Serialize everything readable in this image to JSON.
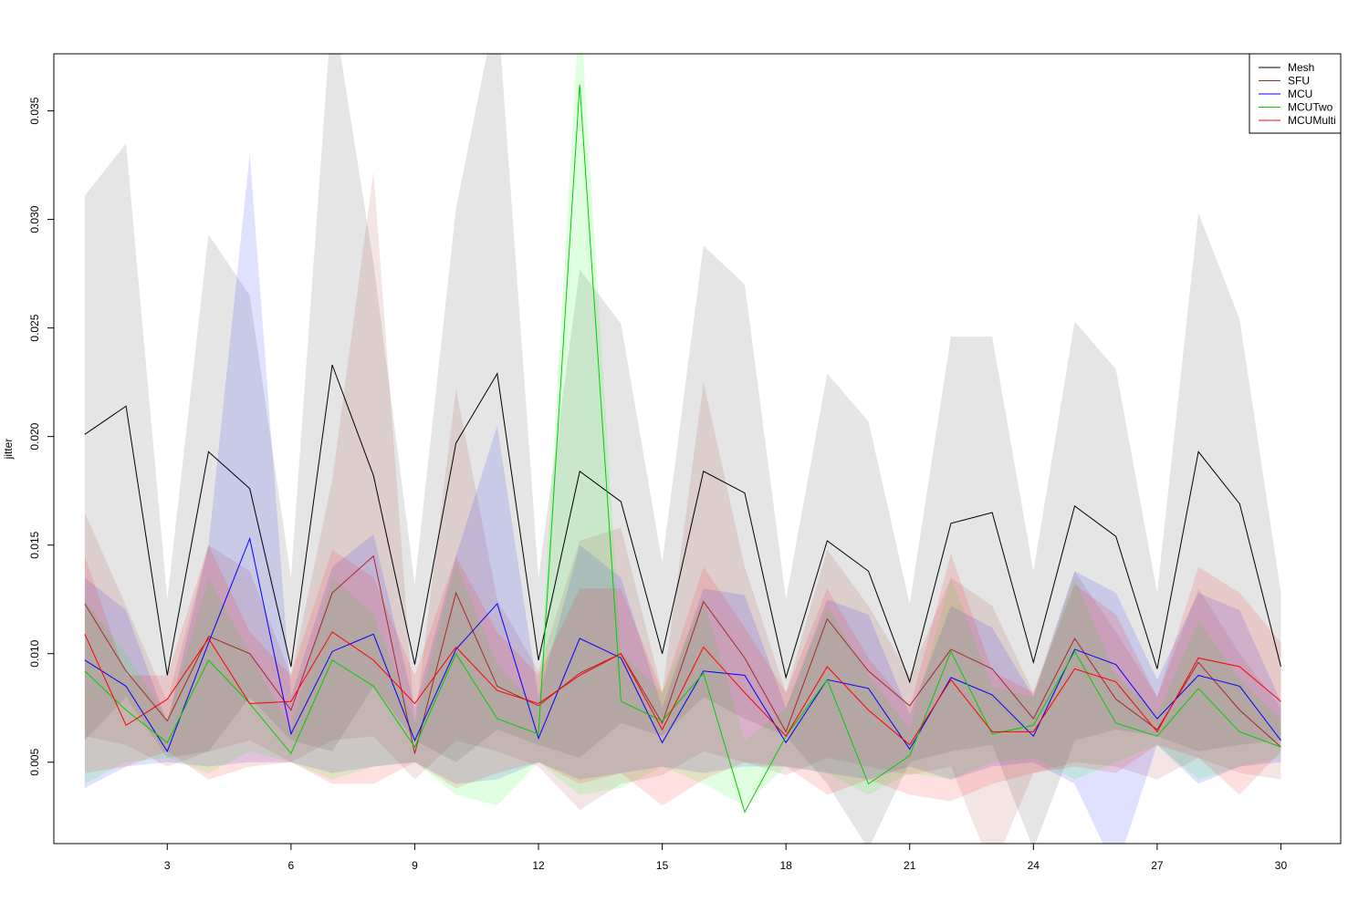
{
  "chart_data": {
    "type": "line",
    "title": "",
    "xlabel": "",
    "ylabel": "jitter",
    "xlim": [
      0.25,
      31.45
    ],
    "ylim": [
      0.00125,
      0.03763
    ],
    "x_ticks": [
      3,
      6,
      9,
      12,
      15,
      18,
      21,
      24,
      27,
      30
    ],
    "y_ticks": [
      0.005,
      0.01,
      0.015,
      0.02,
      0.025,
      0.03,
      0.035
    ],
    "y_tick_labels": [
      "0.005",
      "0.010",
      "0.015",
      "0.020",
      "0.025",
      "0.030",
      "0.035"
    ],
    "grid": false,
    "legend_position": "top-right",
    "x": [
      1,
      2,
      3,
      4,
      5,
      6,
      7,
      8,
      9,
      10,
      11,
      12,
      13,
      14,
      15,
      16,
      17,
      18,
      19,
      20,
      21,
      22,
      23,
      24,
      25,
      26,
      27,
      28,
      29,
      30
    ],
    "series": [
      {
        "name": "Mesh",
        "color": "#000000",
        "band_color": "#bebebe",
        "values": [
          0.0201,
          0.0214,
          0.009,
          0.0193,
          0.0176,
          0.0094,
          0.0233,
          0.0182,
          0.0095,
          0.0197,
          0.0229,
          0.0097,
          0.0184,
          0.017,
          0.01,
          0.0184,
          0.0174,
          0.0089,
          0.0152,
          0.0138,
          0.0087,
          0.016,
          0.0165,
          0.0096,
          0.0168,
          0.0154,
          0.0093,
          0.0193,
          0.0169,
          0.0094
        ],
        "lower": [
          0.006,
          0.008,
          0.0052,
          0.0055,
          0.008,
          0.006,
          0.0055,
          0.0085,
          0.006,
          0.005,
          0.0065,
          0.0058,
          0.0052,
          0.0068,
          0.0062,
          0.008,
          0.007,
          0.0062,
          0.004,
          0.001,
          0.005,
          0.0055,
          0.0058,
          0.001,
          0.006,
          0.0065,
          0.0062,
          0.0055,
          0.0058,
          0.006
        ],
        "upper": [
          0.0311,
          0.0335,
          0.0125,
          0.0293,
          0.0265,
          0.0135,
          0.04,
          0.028,
          0.0132,
          0.0305,
          0.04,
          0.0135,
          0.0277,
          0.0252,
          0.0142,
          0.0288,
          0.027,
          0.0125,
          0.0229,
          0.0207,
          0.0123,
          0.0246,
          0.0246,
          0.0138,
          0.0253,
          0.0231,
          0.0128,
          0.0303,
          0.0254,
          0.0128
        ]
      },
      {
        "name": "SFU",
        "color": "#a52a2a",
        "band_color": "#a52a2a",
        "values": [
          0.0123,
          0.0092,
          0.0069,
          0.0108,
          0.01,
          0.0074,
          0.0128,
          0.0145,
          0.0054,
          0.0128,
          0.0085,
          0.0076,
          0.0091,
          0.01,
          0.0068,
          0.0124,
          0.0098,
          0.0064,
          0.0116,
          0.0092,
          0.0076,
          0.0102,
          0.0093,
          0.007,
          0.0107,
          0.0079,
          0.0065,
          0.0096,
          0.0074,
          0.0057
        ],
        "lower": [
          0.0062,
          0.0058,
          0.0048,
          0.0055,
          0.006,
          0.005,
          0.006,
          0.0062,
          0.0042,
          0.006,
          0.0055,
          0.0048,
          0.0028,
          0.004,
          0.0044,
          0.0055,
          0.005,
          0.0044,
          0.0052,
          0.0048,
          0.0044,
          0.0048,
          0.0,
          0.0045,
          0.005,
          0.0048,
          0.0042,
          0.0052,
          0.0045,
          0.0042
        ],
        "upper": [
          0.0165,
          0.0122,
          0.0078,
          0.015,
          0.0138,
          0.009,
          0.018,
          0.0322,
          0.0068,
          0.0222,
          0.0125,
          0.0092,
          0.0152,
          0.0158,
          0.0082,
          0.0225,
          0.014,
          0.0082,
          0.0148,
          0.0122,
          0.009,
          0.0135,
          0.0122,
          0.0082,
          0.0138,
          0.011,
          0.008,
          0.013,
          0.01,
          0.0075
        ]
      },
      {
        "name": "MCU",
        "color": "#0000ff",
        "band_color": "#0000ff",
        "values": [
          0.0097,
          0.0085,
          0.0055,
          0.0105,
          0.0153,
          0.0063,
          0.0101,
          0.0109,
          0.006,
          0.0102,
          0.0123,
          0.0061,
          0.0107,
          0.0098,
          0.0059,
          0.0092,
          0.009,
          0.0059,
          0.0088,
          0.0084,
          0.0056,
          0.0089,
          0.0081,
          0.0062,
          0.0102,
          0.0095,
          0.007,
          0.009,
          0.0085,
          0.006
        ],
        "lower": [
          0.0038,
          0.0048,
          0.005,
          0.0048,
          0.005,
          0.005,
          0.0045,
          0.0048,
          0.005,
          0.004,
          0.0042,
          0.005,
          0.0042,
          0.0045,
          0.0048,
          0.0045,
          0.0048,
          0.0048,
          0.0045,
          0.0042,
          0.0048,
          0.0042,
          0.0048,
          0.005,
          0.004,
          0.0,
          0.0058,
          0.004,
          0.0048,
          0.005
        ],
        "upper": [
          0.0135,
          0.012,
          0.0068,
          0.015,
          0.033,
          0.008,
          0.014,
          0.0155,
          0.0075,
          0.0145,
          0.0205,
          0.008,
          0.015,
          0.0135,
          0.0075,
          0.013,
          0.0127,
          0.0075,
          0.0125,
          0.0118,
          0.0072,
          0.0122,
          0.0112,
          0.008,
          0.0138,
          0.0128,
          0.0088,
          0.0128,
          0.012,
          0.0078
        ]
      },
      {
        "name": "MCUTwo",
        "color": "#00cd00",
        "band_color": "#00ff00",
        "values": [
          0.0092,
          0.0074,
          0.0059,
          0.0097,
          0.0077,
          0.0054,
          0.0097,
          0.0085,
          0.0057,
          0.01,
          0.007,
          0.0063,
          0.0362,
          0.0078,
          0.0069,
          0.0091,
          0.0027,
          0.0062,
          0.0088,
          0.004,
          0.0053,
          0.0101,
          0.0063,
          0.0067,
          0.0101,
          0.0068,
          0.0062,
          0.0084,
          0.0064,
          0.0057
        ],
        "lower": [
          0.004,
          0.005,
          0.0052,
          0.0045,
          0.0055,
          0.005,
          0.0042,
          0.0048,
          0.005,
          0.0035,
          0.003,
          0.005,
          0.0035,
          0.0038,
          0.0048,
          0.004,
          0.003,
          0.0048,
          0.0045,
          0.0035,
          0.0045,
          0.0042,
          0.005,
          0.0052,
          0.0042,
          0.005,
          0.0058,
          0.0042,
          0.0048,
          0.0052
        ],
        "upper": [
          0.0125,
          0.01,
          0.007,
          0.0135,
          0.01,
          0.0065,
          0.0135,
          0.0118,
          0.0068,
          0.0142,
          0.0095,
          0.0075,
          0.04,
          0.01,
          0.0082,
          0.0125,
          0.006,
          0.0075,
          0.0122,
          0.009,
          0.0065,
          0.0135,
          0.0085,
          0.008,
          0.0135,
          0.009,
          0.0072,
          0.0115,
          0.0088,
          0.007
        ]
      },
      {
        "name": "MCUMulti",
        "color": "#ff0000",
        "band_color": "#ff0000",
        "values": [
          0.0109,
          0.0067,
          0.0079,
          0.0107,
          0.0077,
          0.0078,
          0.011,
          0.0097,
          0.0077,
          0.0103,
          0.0083,
          0.0077,
          0.009,
          0.01,
          0.0065,
          0.0103,
          0.0082,
          0.0062,
          0.0094,
          0.0074,
          0.0058,
          0.0088,
          0.0064,
          0.0064,
          0.0093,
          0.0087,
          0.0064,
          0.0098,
          0.0094,
          0.0078
        ],
        "lower": [
          0.0045,
          0.0048,
          0.0055,
          0.0042,
          0.0048,
          0.005,
          0.004,
          0.004,
          0.005,
          0.0038,
          0.0045,
          0.005,
          0.004,
          0.0045,
          0.003,
          0.0042,
          0.005,
          0.0048,
          0.0035,
          0.0042,
          0.0035,
          0.0032,
          0.004,
          0.0045,
          0.0048,
          0.0045,
          0.0058,
          0.0052,
          0.0035,
          0.0055
        ],
        "upper": [
          0.0145,
          0.009,
          0.009,
          0.015,
          0.011,
          0.009,
          0.0148,
          0.0135,
          0.009,
          0.0145,
          0.011,
          0.009,
          0.013,
          0.013,
          0.0082,
          0.014,
          0.0112,
          0.0082,
          0.013,
          0.0098,
          0.0075,
          0.0146,
          0.0092,
          0.0082,
          0.0132,
          0.0118,
          0.008,
          0.014,
          0.0128,
          0.0105
        ]
      }
    ]
  }
}
